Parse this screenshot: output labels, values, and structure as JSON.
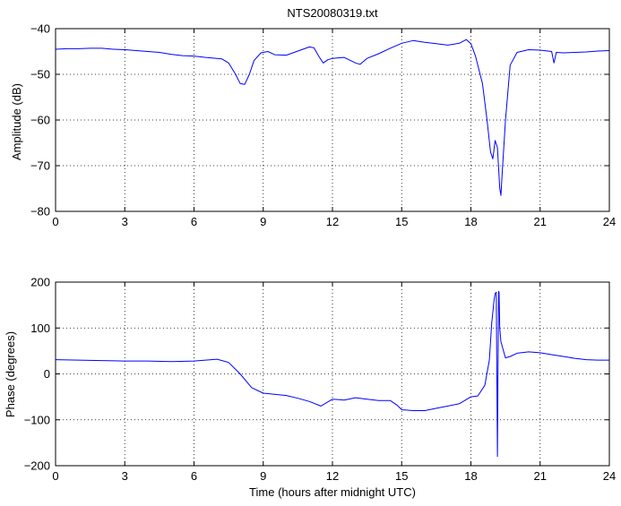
{
  "chart_data": [
    {
      "type": "line",
      "title": "NTS20080319.txt",
      "xlabel": "",
      "ylabel": "Amplitude (dB)",
      "xlim": [
        0,
        24
      ],
      "ylim": [
        -80,
        -40
      ],
      "xticks": [
        "0",
        "3",
        "6",
        "9",
        "12",
        "15",
        "18",
        "21",
        "24"
      ],
      "yticks": [
        "−40",
        "−50",
        "−60",
        "−70",
        "−80"
      ],
      "grid": true,
      "color": "#0000ff",
      "series": [
        {
          "x": [
            0,
            0.5,
            1,
            1.5,
            2,
            2.5,
            3,
            3.5,
            4,
            4.5,
            5,
            5.5,
            6,
            6.5,
            7,
            7.2,
            7.5,
            7.8,
            8.0,
            8.2,
            8.4,
            8.6,
            8.9,
            9.2,
            9.5,
            10,
            10.5,
            11,
            11.2,
            11.4,
            11.6,
            11.8,
            12,
            12.5,
            13,
            13.2,
            13.5,
            14,
            14.5,
            15,
            15.5,
            16,
            16.5,
            17,
            17.5,
            17.8,
            18.0,
            18.2,
            18.5,
            18.7,
            18.85,
            18.95,
            19.05,
            19.15,
            19.25,
            19.3,
            19.35,
            19.5,
            19.7,
            20,
            20.5,
            21,
            21.5,
            21.6,
            21.7,
            22,
            22.5,
            23,
            23.5,
            24
          ],
          "y": [
            -44.5,
            -44.4,
            -44.4,
            -44.3,
            -44.3,
            -44.5,
            -44.6,
            -44.8,
            -45.0,
            -45.2,
            -45.6,
            -45.9,
            -46.0,
            -46.3,
            -46.5,
            -46.6,
            -47.5,
            -50.0,
            -52.0,
            -52.2,
            -50.0,
            -47.0,
            -45.3,
            -45.0,
            -45.7,
            -45.8,
            -44.9,
            -44.0,
            -44.2,
            -46.0,
            -47.5,
            -46.8,
            -46.5,
            -46.3,
            -47.5,
            -47.8,
            -46.5,
            -45.5,
            -44.3,
            -43.2,
            -42.6,
            -43.0,
            -43.3,
            -43.6,
            -43.2,
            -42.4,
            -43.3,
            -46.0,
            -52.0,
            -60.0,
            -67.0,
            -68.5,
            -64.5,
            -66.0,
            -75.0,
            -76.5,
            -72.0,
            -60.0,
            -48.0,
            -45.2,
            -44.6,
            -44.7,
            -45.0,
            -47.5,
            -45.2,
            -45.3,
            -45.2,
            -45.1,
            -44.9,
            -44.8
          ]
        }
      ]
    },
    {
      "type": "line",
      "title": "",
      "xlabel": "Time (hours after midnight UTC)",
      "ylabel": "Phase (degrees)",
      "xlim": [
        0,
        24
      ],
      "ylim": [
        -200,
        200
      ],
      "xticks": [
        "0",
        "3",
        "6",
        "9",
        "12",
        "15",
        "18",
        "21",
        "24"
      ],
      "yticks": [
        "200",
        "100",
        "0",
        "−100",
        "−200"
      ],
      "grid": true,
      "color": "#0000ff",
      "series": [
        {
          "x": [
            0,
            1,
            2,
            3,
            4,
            5,
            6,
            6.5,
            7,
            7.5,
            8,
            8.5,
            9,
            10,
            10.5,
            11,
            11.5,
            12,
            12.5,
            13,
            13.5,
            14,
            14.5,
            14.8,
            15,
            15.5,
            16,
            16.5,
            17,
            17.5,
            18,
            18.3,
            18.6,
            18.8,
            18.9,
            19.0,
            19.05,
            19.1,
            19.15,
            19.2,
            19.22,
            19.25,
            19.3,
            19.5,
            19.7,
            20,
            20.5,
            21,
            21.5,
            22,
            22.5,
            23,
            23.5,
            24
          ],
          "y": [
            31,
            30,
            29,
            28,
            28,
            27,
            28,
            30,
            32,
            25,
            0,
            -30,
            -42,
            -47,
            -53,
            -60,
            -70,
            -55,
            -57,
            -52,
            -55,
            -58,
            -58,
            -68,
            -78,
            -80,
            -80,
            -75,
            -70,
            -65,
            -50,
            -48,
            -25,
            30,
            110,
            160,
            175,
            178,
            -180,
            180,
            178,
            100,
            70,
            35,
            38,
            45,
            48,
            46,
            42,
            38,
            34,
            31,
            30,
            30
          ]
        }
      ]
    }
  ]
}
